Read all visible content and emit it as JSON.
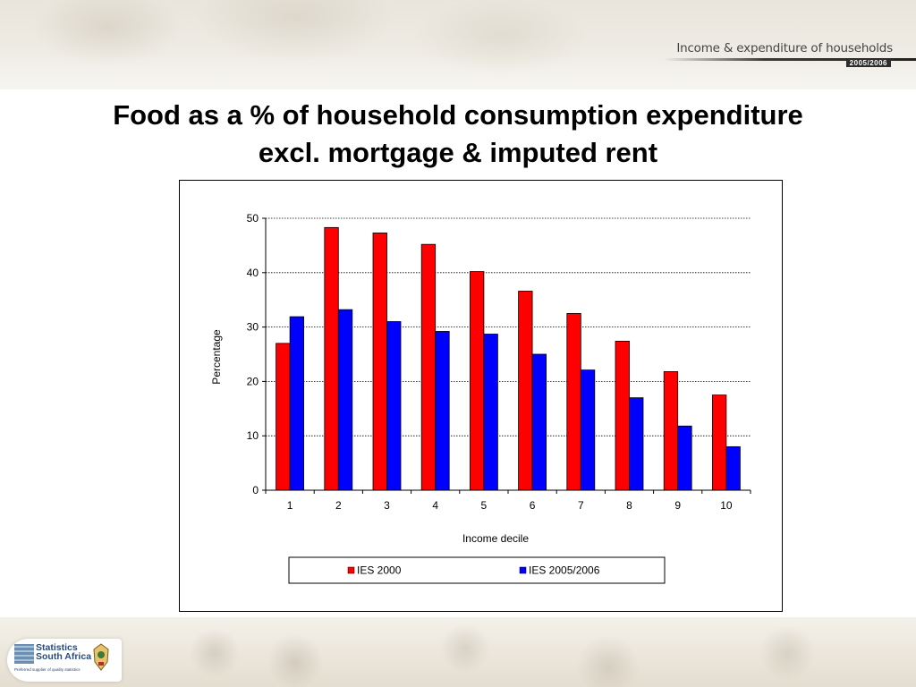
{
  "header": {
    "series_title": "Income & expenditure of households",
    "year": "2005/2006"
  },
  "slide": {
    "title_line1": "Food as a % of household consumption expenditure",
    "title_line2": "excl. mortgage & imputed rent"
  },
  "footer": {
    "logo_line1": "Statistics",
    "logo_line2": "South Africa",
    "logo_tagline": "Preferred supplier of quality statistics"
  },
  "colors": {
    "ies2000": "#ff0000",
    "ies2005": "#0000ff"
  },
  "chart_data": {
    "type": "bar",
    "title": "",
    "xlabel": "Income decile",
    "ylabel": "Percentage",
    "ylim": [
      0,
      50
    ],
    "yticks": [
      0,
      10,
      20,
      30,
      40,
      50
    ],
    "grid": "horizontal dotted",
    "legend_position": "bottom",
    "categories": [
      "1",
      "2",
      "3",
      "4",
      "5",
      "6",
      "7",
      "8",
      "9",
      "10"
    ],
    "series": [
      {
        "name": "IES 2000",
        "color": "#ff0000",
        "values": [
          27,
          48.3,
          47.3,
          45.2,
          40.2,
          36.6,
          32.5,
          27.4,
          21.8,
          17.5
        ]
      },
      {
        "name": "IES 2005/2006",
        "color": "#0000ff",
        "values": [
          31.9,
          33.2,
          31,
          29.2,
          28.7,
          25,
          22.1,
          17,
          11.8,
          8
        ]
      }
    ]
  }
}
